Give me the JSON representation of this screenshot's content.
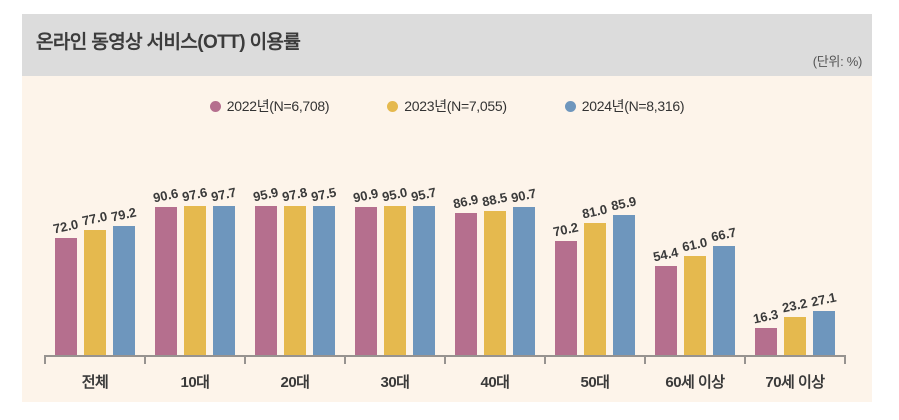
{
  "header": {
    "title": "온라인 동영상 서비스(OTT) 이용률",
    "unit_label": "(단위: %)"
  },
  "chart_data": {
    "type": "bar",
    "title": "온라인 동영상 서비스(OTT) 이용률",
    "unit": "%",
    "categories": [
      "전체",
      "10대",
      "20대",
      "30대",
      "40대",
      "50대",
      "60세 이상",
      "70세 이상"
    ],
    "series": [
      {
        "name": "2022년(N=6,708)",
        "color": "#b56f8e",
        "values": [
          72.0,
          90.6,
          95.9,
          90.9,
          86.9,
          70.2,
          54.4,
          16.3
        ]
      },
      {
        "name": "2023년(N=7,055)",
        "color": "#e5b94e",
        "values": [
          77.0,
          97.6,
          97.8,
          95.0,
          88.5,
          81.0,
          61.0,
          23.2
        ]
      },
      {
        "name": "2024년(N=8,316)",
        "color": "#6e96bd",
        "values": [
          79.2,
          97.7,
          97.5,
          95.7,
          90.7,
          85.9,
          66.7,
          27.1
        ]
      }
    ],
    "ylim": [
      0,
      100
    ],
    "grid": false,
    "legend_position": "top",
    "value_labels": true,
    "value_label_format": "one-decimal"
  },
  "colors": {
    "band_bg": "#dcdcdc",
    "chart_bg": "#fdf4ea",
    "axis": "#979390",
    "title_text": "#3c3c3c",
    "label_text": "#3a3a3a"
  }
}
